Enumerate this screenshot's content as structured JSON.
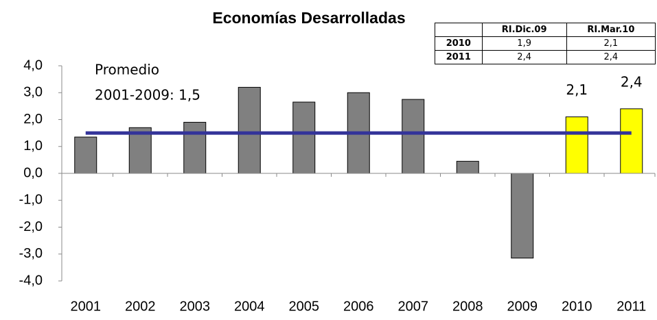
{
  "chart_data": {
    "type": "bar",
    "title": "Economías Desarrolladas",
    "categories": [
      "2001",
      "2002",
      "2003",
      "2004",
      "2005",
      "2006",
      "2007",
      "2008",
      "2009",
      "2010",
      "2011"
    ],
    "values": [
      1.35,
      1.7,
      1.9,
      3.2,
      2.65,
      3.0,
      2.75,
      0.45,
      -3.15,
      2.1,
      2.4
    ],
    "value_labels": [
      null,
      null,
      null,
      null,
      null,
      null,
      null,
      null,
      null,
      "2,1",
      "2,4"
    ],
    "colors": [
      "#808080",
      "#808080",
      "#808080",
      "#808080",
      "#808080",
      "#808080",
      "#808080",
      "#808080",
      "#808080",
      "#ffff00",
      "#ffff00"
    ],
    "average": 1.5,
    "average_color": "#333399",
    "annotations": [
      "Promedio",
      "2001-2009: 1,5"
    ],
    "ylim": [
      -4,
      4
    ],
    "yticks": [
      {
        "value": 4,
        "label": "4,0"
      },
      {
        "value": 3,
        "label": "3,0"
      },
      {
        "value": 2,
        "label": "2,0"
      },
      {
        "value": 1,
        "label": "1,0"
      },
      {
        "value": 0,
        "label": "0,0"
      },
      {
        "value": -1,
        "label": "-1,0"
      },
      {
        "value": -2,
        "label": "-2,0"
      },
      {
        "value": -3,
        "label": "-3,0"
      },
      {
        "value": -4,
        "label": "-4,0"
      }
    ],
    "grid": false
  },
  "table": {
    "header": [
      "RI.Dic.09",
      "RI.Mar.10"
    ],
    "rows": [
      [
        "2010",
        "1,9",
        "2,1"
      ],
      [
        "2011",
        "2,4",
        "2,4"
      ]
    ]
  }
}
